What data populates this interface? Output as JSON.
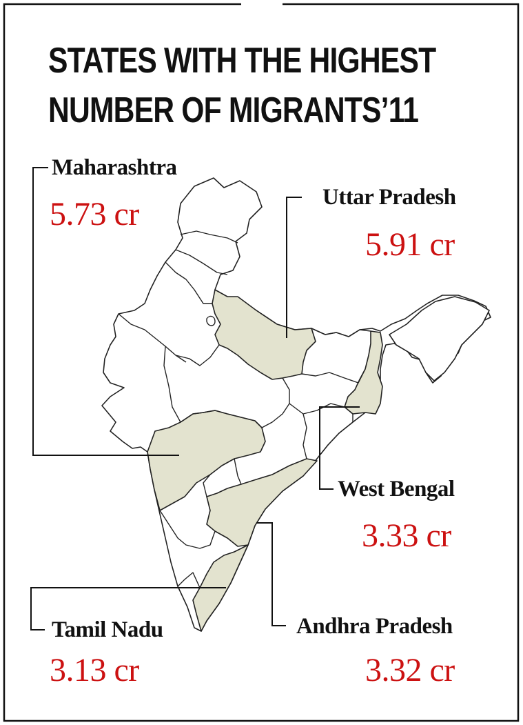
{
  "title": {
    "line1": "STATES WITH THE HIGHEST",
    "line2": "NUMBER OF MIGRANTS’11"
  },
  "colors": {
    "highlight_fill": "#e3e3cf",
    "value_text": "#cc1111",
    "border": "#111111"
  },
  "states": [
    {
      "name": "Maharashtra",
      "value": "5.73 cr",
      "highlighted": true
    },
    {
      "name": "Uttar Pradesh",
      "value": "5.91 cr",
      "highlighted": true
    },
    {
      "name": "West Bengal",
      "value": "3.33 cr",
      "highlighted": true
    },
    {
      "name": "Tamil Nadu",
      "value": "3.13 cr",
      "highlighted": true
    },
    {
      "name": "Andhra Pradesh",
      "value": "3.32 cr",
      "highlighted": true
    }
  ]
}
